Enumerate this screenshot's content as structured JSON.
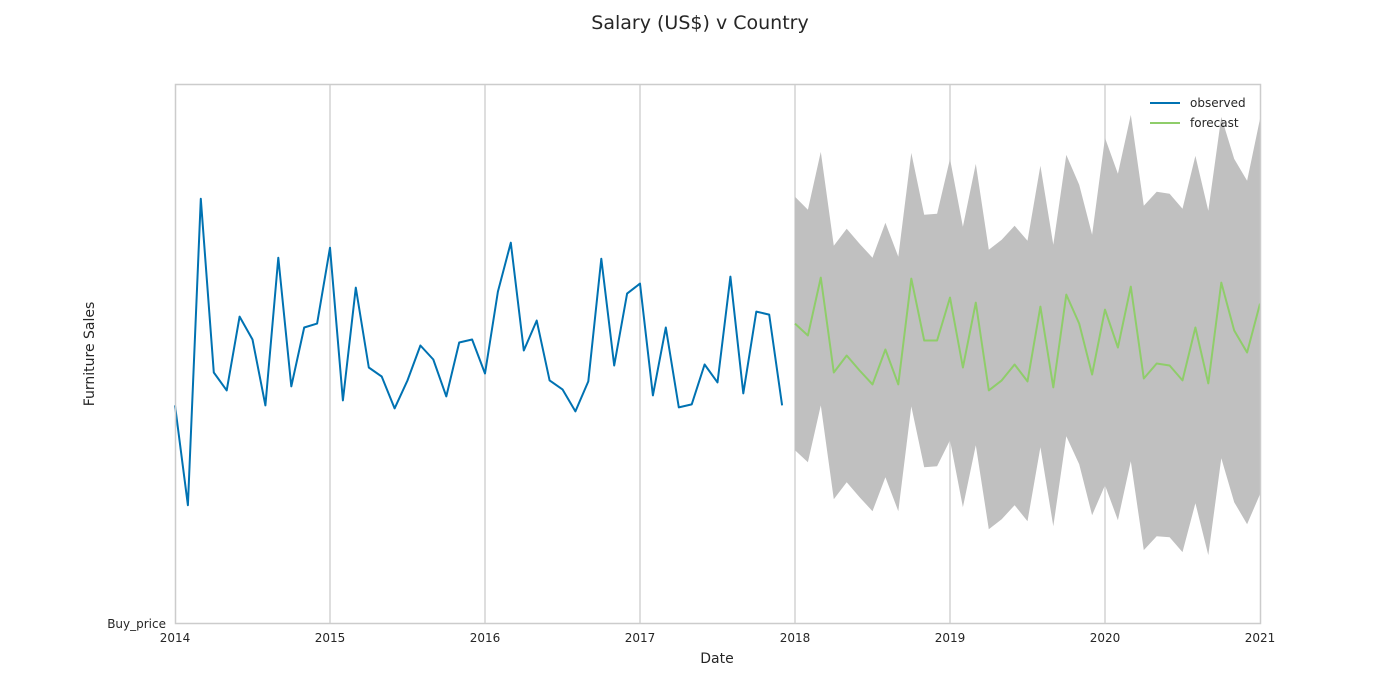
{
  "chart_data": {
    "type": "line",
    "title": "Salary (US$) v Country",
    "xlabel": "Date",
    "ylabel": "Furniture Sales",
    "y_tick_label": "Buy_price",
    "x_ticks": [
      "2014",
      "2015",
      "2016",
      "2017",
      "2018",
      "2019",
      "2020",
      "2021"
    ],
    "xlim": [
      2014.0,
      2021.0
    ],
    "ylim": [
      0,
      540
    ],
    "grid": "vertical",
    "legend_position": "top-right",
    "colors": {
      "observed": "#0072b2",
      "forecast": "#8fcd6a",
      "interval": "#c0c0c0"
    },
    "series": [
      {
        "name": "observed",
        "x": [
          2014.0,
          2014.0833,
          2014.1667,
          2014.25,
          2014.3333,
          2014.4167,
          2014.5,
          2014.5833,
          2014.6667,
          2014.75,
          2014.8333,
          2014.9167,
          2015.0,
          2015.0833,
          2015.1667,
          2015.25,
          2015.3333,
          2015.4167,
          2015.5,
          2015.5833,
          2015.6667,
          2015.75,
          2015.8333,
          2015.9167,
          2016.0,
          2016.0833,
          2016.1667,
          2016.25,
          2016.3333,
          2016.4167,
          2016.5,
          2016.5833,
          2016.6667,
          2016.75,
          2016.8333,
          2016.9167,
          2017.0,
          2017.0833,
          2017.1667,
          2017.25,
          2017.3333,
          2017.4167,
          2017.5,
          2017.5833,
          2017.6667,
          2017.75,
          2017.8333,
          2017.9167
        ],
        "y": [
          218,
          118,
          425,
          251,
          233,
          307,
          284,
          218,
          366,
          237,
          296,
          300,
          376,
          223,
          336,
          256,
          247,
          215,
          243,
          278,
          264,
          227,
          281,
          284,
          250,
          332,
          381,
          273,
          303,
          243,
          234,
          212,
          242,
          365,
          258,
          330,
          340,
          228,
          296,
          216,
          219,
          259,
          241,
          347,
          230,
          312,
          309,
          218
        ]
      },
      {
        "name": "forecast",
        "x": [
          2018.0,
          2018.0833,
          2018.1667,
          2018.25,
          2018.3333,
          2018.4167,
          2018.5,
          2018.5833,
          2018.6667,
          2018.75,
          2018.8333,
          2018.9167,
          2019.0,
          2019.0833,
          2019.1667,
          2019.25,
          2019.3333,
          2019.4167,
          2019.5,
          2019.5833,
          2019.6667,
          2019.75,
          2019.8333,
          2019.9167,
          2020.0,
          2020.0833,
          2020.1667,
          2020.25,
          2020.3333,
          2020.4167,
          2020.5,
          2020.5833,
          2020.6667,
          2020.75,
          2020.8333,
          2020.9167,
          2021.0
        ],
        "y": [
          300,
          288,
          346,
          251,
          268,
          253,
          239,
          274,
          239,
          345,
          283,
          283,
          326,
          256,
          321,
          233,
          243,
          259,
          242,
          317,
          236,
          329,
          300,
          249,
          314,
          276,
          337,
          245,
          260,
          258,
          243,
          296,
          240,
          341,
          293,
          271,
          320
        ],
        "lower": [
          173,
          161,
          218,
          124,
          141,
          126,
          112,
          146,
          112,
          217,
          156,
          157,
          183,
          116,
          178,
          94,
          104,
          118,
          102,
          176,
          97,
          187,
          159,
          108,
          138,
          103,
          162,
          73,
          87,
          86,
          71,
          120,
          68,
          165,
          121,
          99,
          129
        ],
        "upper": [
          427,
          414,
          472,
          378,
          395,
          380,
          366,
          401,
          367,
          471,
          409,
          410,
          465,
          397,
          460,
          374,
          384,
          398,
          383,
          458,
          379,
          469,
          439,
          389,
          486,
          450,
          509,
          418,
          432,
          430,
          415,
          468,
          413,
          507,
          465,
          443,
          505
        ]
      }
    ]
  }
}
